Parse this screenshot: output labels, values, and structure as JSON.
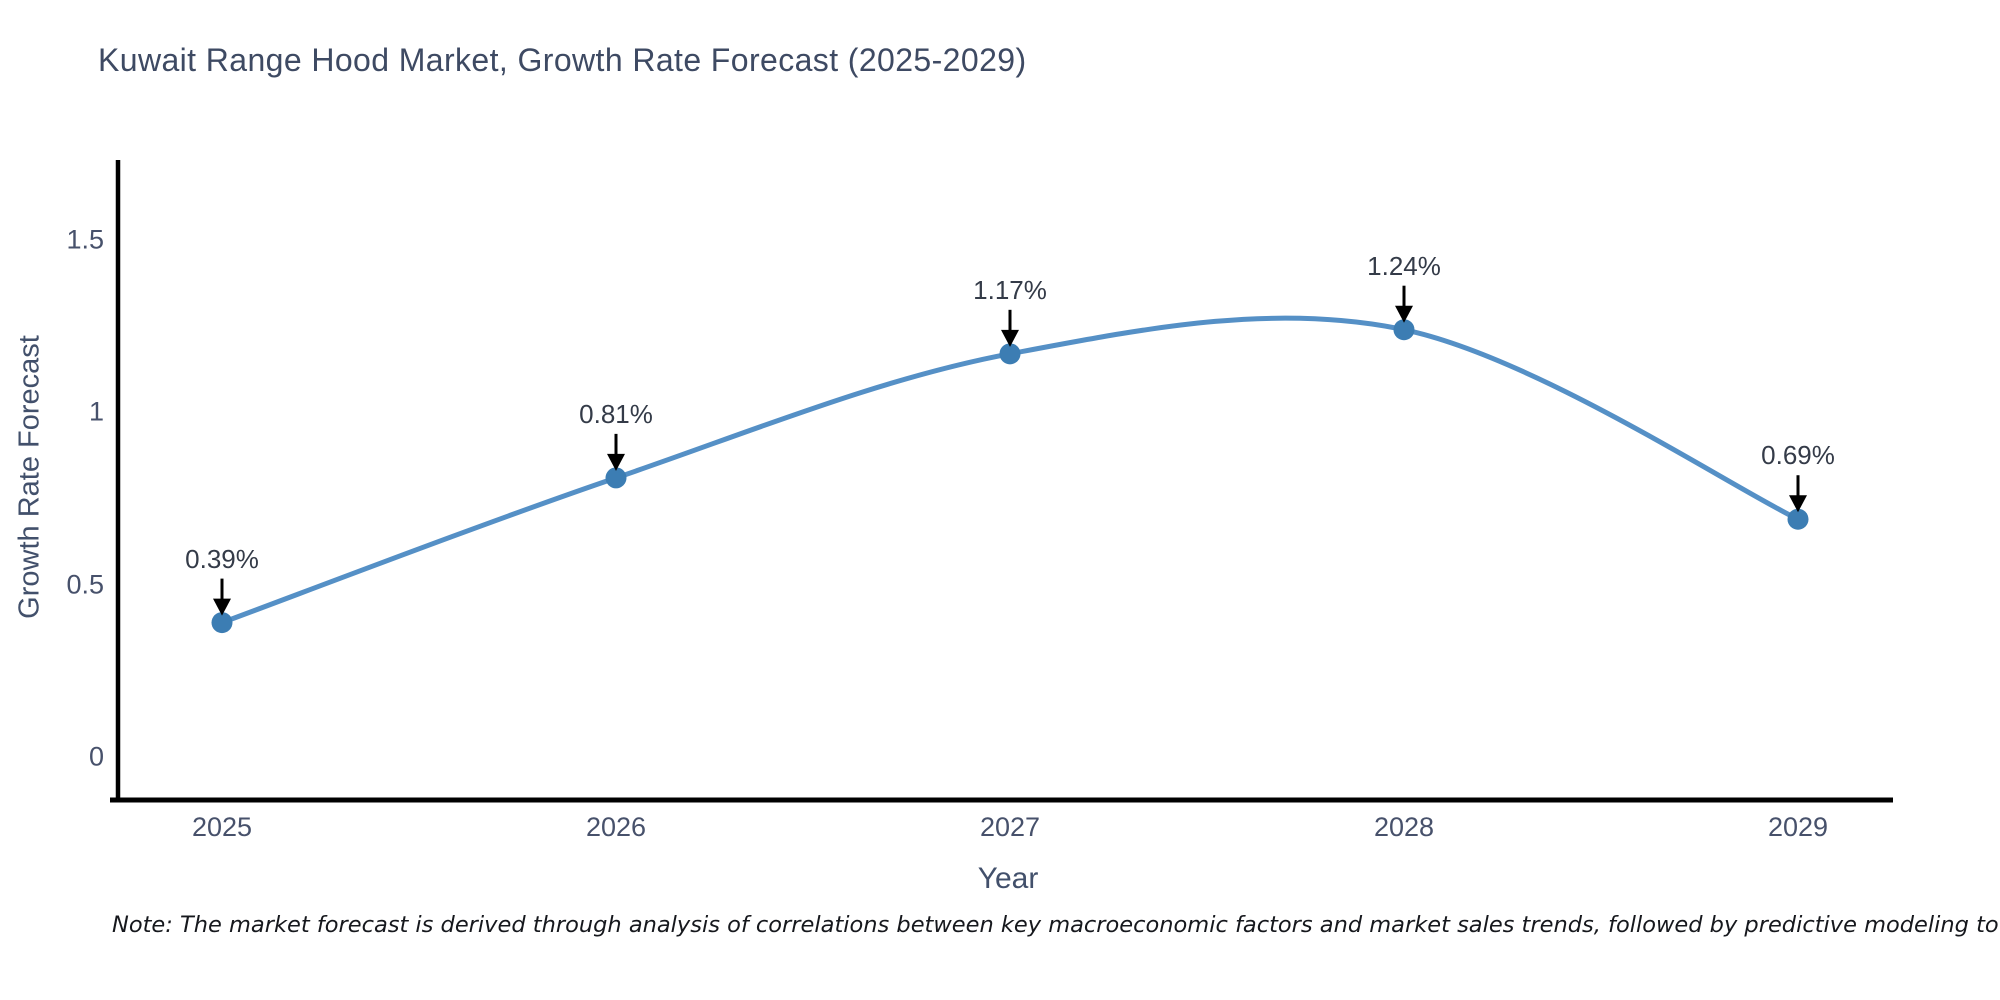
{
  "title": "Kuwait Range Hood Market, Growth Rate Forecast (2025-2029)",
  "note": "Note: The market forecast is derived through analysis of correlations between key macroeconomic factors and market sales trends, followed by predictive modeling to project future sales",
  "chart_data": {
    "type": "line",
    "line_shape": "spline",
    "title": "Kuwait Range Hood Market, Growth Rate Forecast (2025-2029)",
    "xlabel": "Year",
    "ylabel": "Growth Rate Forecast",
    "categories": [
      "2025",
      "2026",
      "2027",
      "2028",
      "2029"
    ],
    "x": [
      2025,
      2026,
      2027,
      2028,
      2029
    ],
    "values": [
      0.39,
      0.81,
      1.17,
      1.24,
      0.69
    ],
    "point_labels": [
      "0.39%",
      "0.81%",
      "1.17%",
      "1.24%",
      "0.69%"
    ],
    "yticks": [
      0,
      0.5,
      1,
      1.5
    ],
    "ytick_labels": [
      "0",
      "0.5",
      "1",
      "1.5"
    ],
    "ylim": [
      -0.13,
      1.87
    ],
    "grid": false,
    "legend": "none",
    "annotation_arrow": "black-down-arrow",
    "colors": {
      "line": "#5590c6",
      "marker": "#3c7db3",
      "axis": "#000000",
      "title_text": "#3e4a63",
      "tick_text": "#47516b",
      "annotation_text": "#343b48",
      "note_text": "#16181d",
      "background": "#ffffff"
    }
  }
}
